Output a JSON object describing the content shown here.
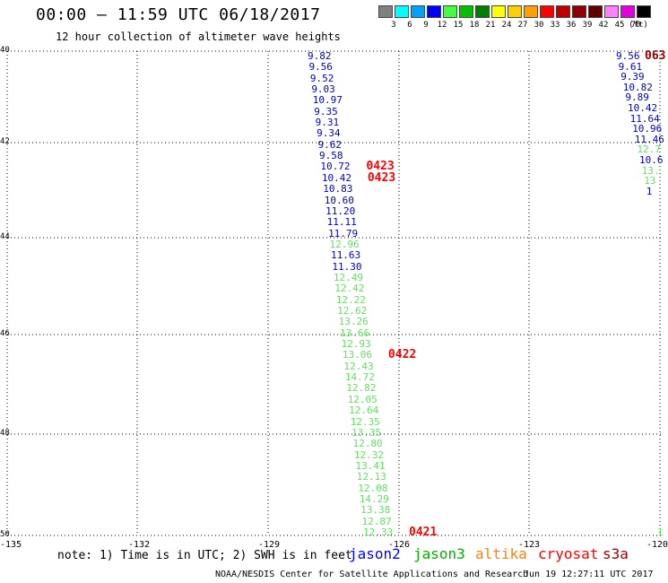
{
  "header": {
    "title": "00:00 – 11:59 UTC 06/18/2017",
    "subtitle": "12 hour collection of altimeter wave heights"
  },
  "legend": {
    "unit": "(ft)",
    "bins": [
      {
        "label": "3",
        "color": "#808080"
      },
      {
        "label": "6",
        "color": "#00ffff"
      },
      {
        "label": "9",
        "color": "#00a0ff"
      },
      {
        "label": "12",
        "color": "#0000ff"
      },
      {
        "label": "15",
        "color": "#40ff40"
      },
      {
        "label": "18",
        "color": "#00c000"
      },
      {
        "label": "21",
        "color": "#008000"
      },
      {
        "label": "24",
        "color": "#ffff00"
      },
      {
        "label": "27",
        "color": "#ffd000"
      },
      {
        "label": "30",
        "color": "#ffa000"
      },
      {
        "label": "33",
        "color": "#ff0000"
      },
      {
        "label": "36",
        "color": "#c00000"
      },
      {
        "label": "39",
        "color": "#900000"
      },
      {
        "label": "42",
        "color": "#600000"
      },
      {
        "label": "45",
        "color": "#ff80ff"
      },
      {
        "label": "70",
        "color": "#e000e0"
      },
      {
        "label": "",
        "color": "#000000"
      }
    ]
  },
  "map": {
    "lat_labels": [
      "40",
      "42",
      "44",
      "46",
      "48",
      "50"
    ],
    "lon_labels": [
      "-135",
      "-132",
      "-129",
      "-126",
      "-123",
      "-120"
    ]
  },
  "track_main": {
    "points": [
      {
        "v": "9.82",
        "c": "#0000c0"
      },
      {
        "v": "9.56",
        "c": "#0000c0"
      },
      {
        "v": "9.52",
        "c": "#0000c0"
      },
      {
        "v": "9.03",
        "c": "#0000c0"
      },
      {
        "v": "10.97",
        "c": "#0000c0"
      },
      {
        "v": "9.35",
        "c": "#0000c0"
      },
      {
        "v": "9.31",
        "c": "#0000c0"
      },
      {
        "v": "9.34",
        "c": "#0000c0"
      },
      {
        "v": "9.62",
        "c": "#0000c0"
      },
      {
        "v": "9.58",
        "c": "#0000c0"
      },
      {
        "v": "10.72",
        "c": "#0000c0"
      },
      {
        "v": "10.42",
        "c": "#0000c0"
      },
      {
        "v": "10.83",
        "c": "#0000c0"
      },
      {
        "v": "10.60",
        "c": "#0000c0"
      },
      {
        "v": "11.20",
        "c": "#0000c0"
      },
      {
        "v": "11.11",
        "c": "#0000c0"
      },
      {
        "v": "11.79",
        "c": "#0000c0"
      },
      {
        "v": "12.96",
        "c": "#60e060"
      },
      {
        "v": "11.63",
        "c": "#0000c0"
      },
      {
        "v": "11.30",
        "c": "#0000c0"
      },
      {
        "v": "12.49",
        "c": "#60e060"
      },
      {
        "v": "12.42",
        "c": "#60e060"
      },
      {
        "v": "12.22",
        "c": "#60e060"
      },
      {
        "v": "12.62",
        "c": "#60e060"
      },
      {
        "v": "13.26",
        "c": "#60e060"
      },
      {
        "v": "13.66",
        "c": "#60e060"
      },
      {
        "v": "12.93",
        "c": "#60e060"
      },
      {
        "v": "13.06",
        "c": "#60e060"
      },
      {
        "v": "12.43",
        "c": "#60e060"
      },
      {
        "v": "14.72",
        "c": "#60e060"
      },
      {
        "v": "12.82",
        "c": "#60e060"
      },
      {
        "v": "12.05",
        "c": "#60e060"
      },
      {
        "v": "12.64",
        "c": "#60e060"
      },
      {
        "v": "12.35",
        "c": "#60e060"
      },
      {
        "v": "13.35",
        "c": "#60e060"
      },
      {
        "v": "12.80",
        "c": "#60e060"
      },
      {
        "v": "12.32",
        "c": "#60e060"
      },
      {
        "v": "13.41",
        "c": "#60e060"
      },
      {
        "v": "12.13",
        "c": "#60e060"
      },
      {
        "v": "12.08",
        "c": "#60e060"
      },
      {
        "v": "14.29",
        "c": "#60e060"
      },
      {
        "v": "13.38",
        "c": "#60e060"
      },
      {
        "v": "12.87",
        "c": "#60e060"
      },
      {
        "v": "12.33",
        "c": "#60e060"
      }
    ],
    "time_labels": [
      {
        "text": "0423",
        "color": "#ff0000",
        "idx": 10
      },
      {
        "text": "0423",
        "color": "#ff0000",
        "idx": 11
      },
      {
        "text": "0422",
        "color": "#ff0000",
        "idx": 27
      },
      {
        "text": "0421",
        "color": "#ff0000",
        "idx": 43
      }
    ]
  },
  "track_right": {
    "points": [
      {
        "v": "9.56",
        "c": "#0000c0"
      },
      {
        "v": "9.61",
        "c": "#0000c0"
      },
      {
        "v": "9.39",
        "c": "#0000c0"
      },
      {
        "v": "10.82",
        "c": "#0000c0"
      },
      {
        "v": "9.89",
        "c": "#0000c0"
      },
      {
        "v": "10.42",
        "c": "#0000c0"
      },
      {
        "v": "11.64",
        "c": "#0000c0"
      },
      {
        "v": "10.96",
        "c": "#0000c0"
      },
      {
        "v": "11.46",
        "c": "#0000c0"
      },
      {
        "v": "12.7",
        "c": "#60e060"
      },
      {
        "v": "10.6",
        "c": "#0000c0"
      },
      {
        "v": "13.",
        "c": "#60e060"
      },
      {
        "v": "13",
        "c": "#60e060"
      },
      {
        "v": "1",
        "c": "#0000c0"
      }
    ],
    "time_label": {
      "text": "063",
      "color": "#900000"
    },
    "bottom_partial": {
      "text": "1",
      "color": "#60e060"
    }
  },
  "footer": {
    "note": "note: 1) Time is in UTC; 2) SWH is in feet",
    "satellites": [
      {
        "name": "jason2",
        "color": "#0000ff"
      },
      {
        "name": "jason3",
        "color": "#00b000"
      },
      {
        "name": "altika",
        "color": "#ff8000"
      },
      {
        "name": "cryosat",
        "color": "#ff0000"
      },
      {
        "name": "s3a",
        "color": "#a00000"
      }
    ],
    "credit": "NOAA/NESDIS Center for Satellite Applications and Research",
    "timestamp": "Jun 19 12:27:11 UTC 2017"
  }
}
